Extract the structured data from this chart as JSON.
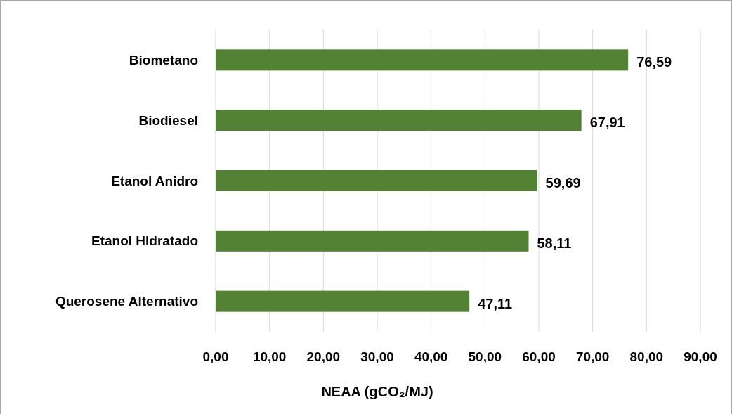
{
  "chart_data": {
    "type": "bar",
    "orientation": "horizontal",
    "xlabel": "NEAA (gCO₂/MJ)",
    "categories": [
      "Biometano",
      "Biodiesel",
      "Etanol Anidro",
      "Etanol Hidratado",
      "Querosene Alternativo"
    ],
    "values": [
      76.59,
      67.91,
      59.69,
      58.11,
      47.11
    ],
    "value_labels": [
      "76,59",
      "67,91",
      "59,69",
      "58,11",
      "47,11"
    ],
    "color": "#548235",
    "xlim": [
      0,
      90
    ],
    "xticks": [
      {
        "value": 0,
        "label": "0,00"
      },
      {
        "value": 10,
        "label": "10,00"
      },
      {
        "value": 20,
        "label": "20,00"
      },
      {
        "value": 30,
        "label": "30,00"
      },
      {
        "value": 40,
        "label": "40,00"
      },
      {
        "value": 50,
        "label": "50,00"
      },
      {
        "value": 60,
        "label": "60,00"
      },
      {
        "value": 70,
        "label": "70,00"
      },
      {
        "value": 80,
        "label": "80,00"
      },
      {
        "value": 90,
        "label": "90,00"
      }
    ],
    "grid": "x"
  }
}
